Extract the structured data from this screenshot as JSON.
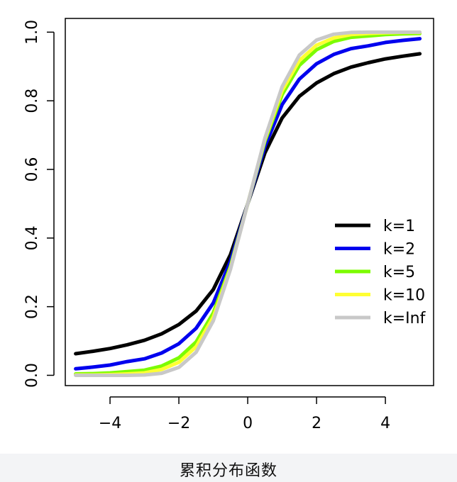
{
  "caption": "累积分布函数",
  "chart_data": {
    "type": "line",
    "title": "",
    "xlabel": "",
    "ylabel": "",
    "xlim": [
      -5,
      5
    ],
    "ylim": [
      0,
      1
    ],
    "x_ticks": [
      -4,
      -2,
      0,
      2,
      4
    ],
    "x_tick_labels": [
      "−4",
      "−2",
      "0",
      "2",
      "4"
    ],
    "y_ticks": [
      0.0,
      0.2,
      0.4,
      0.6,
      0.8,
      1.0
    ],
    "y_tick_labels": [
      "0.0",
      "0.2",
      "0.4",
      "0.6",
      "0.8",
      "1.0"
    ],
    "grid": false,
    "legend_position": "right",
    "x": [
      -5,
      -4.5,
      -4,
      -3.5,
      -3,
      -2.5,
      -2,
      -1.5,
      -1,
      -0.5,
      0,
      0.5,
      1,
      1.5,
      2,
      2.5,
      3,
      3.5,
      4,
      4.5,
      5
    ],
    "series": [
      {
        "name": "k=1",
        "color": "#000000",
        "values": [
          0.063,
          0.07,
          0.078,
          0.089,
          0.102,
          0.121,
          0.148,
          0.187,
          0.25,
          0.352,
          0.5,
          0.648,
          0.75,
          0.813,
          0.852,
          0.879,
          0.898,
          0.911,
          0.922,
          0.93,
          0.937
        ]
      },
      {
        "name": "k=2",
        "color": "#0000ee",
        "values": [
          0.019,
          0.024,
          0.03,
          0.04,
          0.048,
          0.065,
          0.092,
          0.137,
          0.211,
          0.333,
          0.5,
          0.667,
          0.789,
          0.863,
          0.908,
          0.935,
          0.952,
          0.96,
          0.97,
          0.976,
          0.981
        ]
      },
      {
        "name": "k=5",
        "color": "#7cfc00",
        "values": [
          0.004,
          0.005,
          0.007,
          0.011,
          0.015,
          0.027,
          0.051,
          0.097,
          0.182,
          0.318,
          0.5,
          0.682,
          0.818,
          0.903,
          0.949,
          0.973,
          0.985,
          0.989,
          0.993,
          0.995,
          0.996
        ]
      },
      {
        "name": "k=10",
        "color": "#ffff33",
        "values": [
          0.001,
          0.001,
          0.002,
          0.004,
          0.007,
          0.017,
          0.038,
          0.083,
          0.17,
          0.312,
          0.5,
          0.688,
          0.83,
          0.917,
          0.962,
          0.983,
          0.993,
          0.996,
          0.998,
          0.999,
          0.999
        ]
      },
      {
        "name": "k=Inf",
        "color": "#c8c8c8",
        "values": [
          0.0,
          0.0,
          0.0,
          0.0,
          0.001,
          0.006,
          0.023,
          0.067,
          0.159,
          0.309,
          0.5,
          0.691,
          0.841,
          0.933,
          0.977,
          0.994,
          0.999,
          1.0,
          1.0,
          1.0,
          1.0
        ]
      }
    ]
  }
}
